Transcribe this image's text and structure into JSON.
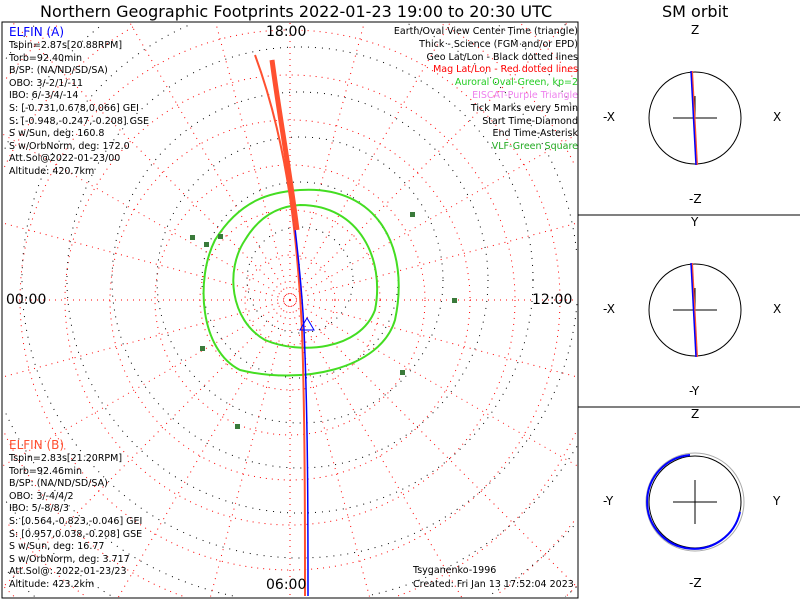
{
  "title": "Northern Geographic Footprints 2022-01-23 19:00 to 20:30 UTC",
  "sm_title": "SM orbit",
  "time_labels": {
    "top": "18:00",
    "left": "00:00",
    "right": "12:00",
    "bottom": "06:00"
  },
  "elfin_a": {
    "name": "ELFIN (A)",
    "color": "#0000ff",
    "lines": [
      "Tspin=2.87s[20.88RPM]",
      "Torb=92.40min",
      "B/SP: (NA/ND/SD/SA)",
      "OBO: 3/-2/1/-11",
      "IBO: 6/-3/4/-14",
      "S: [-0.731,0.678,0.066] GEI",
      "S: [-0.948,-0.247,-0.208] GSE",
      "S w/Sun, deg: 160.8",
      "S w/OrbNorm, deg: 172.0",
      "Att.Sol@2022-01-23/00",
      "Altitude: 420.7km"
    ]
  },
  "elfin_b": {
    "name": "ELFIN (B)",
    "color": "#ff5030",
    "lines": [
      "Tspin=2.83s[21.20RPM]",
      "Torb=92.46min",
      "B/SP: (NA/ND/SD/SA)",
      "OBO: 3/-4/4/2",
      "IBO: 5/-8/8/3",
      "S: [0.564,-0.823,-0.046] GEI",
      "S: [0.957,0.038,-0.208] GSE",
      "S w/Sun, deg: 16.77",
      "S w/OrbNorm, deg: 3.717",
      "Att.Sol@: 2022-01-23/23",
      "Altitude: 423.2km"
    ]
  },
  "legend": [
    {
      "text": "Earth/Oval View Center Time (triangle)",
      "color": "#000000"
    },
    {
      "text": "Thick - Science (FGM and/or EPD)",
      "color": "#000000"
    },
    {
      "text": "Geo Lat/Lon - Black dotted lines",
      "color": "#000000"
    },
    {
      "text": "Mag Lat/Lon - Red dotted lines",
      "color": "#ff0000"
    },
    {
      "text": "Auroral Oval-Green, kp=2",
      "color": "#22cc22"
    },
    {
      "text": "EISCAT-Purple Triangle",
      "color": "#ee82ee"
    },
    {
      "text": "Tick Marks every 5min",
      "color": "#000000"
    },
    {
      "text": "Start Time-Diamond",
      "color": "#000000"
    },
    {
      "text": "End Time-Asterisk",
      "color": "#000000"
    },
    {
      "text": "VLF-Green Square",
      "color": "#22aa22"
    }
  ],
  "credits": [
    "Tsyganenko-1996",
    "Created: Fri Jan 13 17:52:04 2023"
  ],
  "sm_panels": [
    {
      "top": "Z",
      "bottom": "-Z",
      "left": "-X",
      "right": "X"
    },
    {
      "top": "Y",
      "bottom": "-Y",
      "left": "-X",
      "right": "X"
    },
    {
      "top": "Z",
      "bottom": "-Z",
      "left": "-Y",
      "right": "Y"
    }
  ]
}
